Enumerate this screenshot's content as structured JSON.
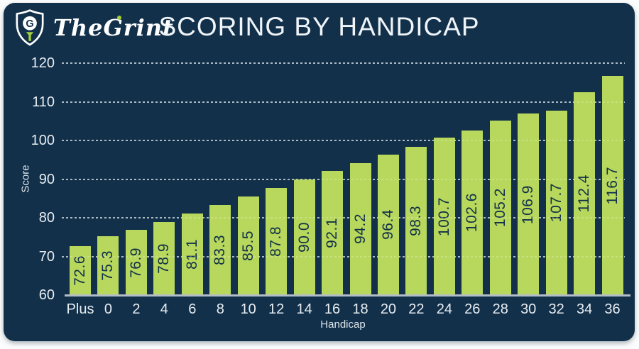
{
  "header": {
    "brand": "TheGrint",
    "title": "SCORING BY HANDICAP"
  },
  "chart_data": {
    "type": "bar",
    "title": "SCORING BY HANDICAP",
    "categories": [
      "Plus",
      "0",
      "2",
      "4",
      "6",
      "8",
      "10",
      "12",
      "14",
      "16",
      "18",
      "20",
      "22",
      "24",
      "26",
      "28",
      "30",
      "32",
      "34",
      "36"
    ],
    "values": [
      72.6,
      75.3,
      76.9,
      78.9,
      81.1,
      83.3,
      85.5,
      87.8,
      90.0,
      92.1,
      94.2,
      96.4,
      98.3,
      100.7,
      102.6,
      105.2,
      106.9,
      107.7,
      112.4,
      116.7
    ],
    "xlabel": "Handicap",
    "ylabel": "Score",
    "ylim": [
      60,
      120
    ],
    "yticks": [
      60,
      70,
      80,
      90,
      100,
      110,
      120
    ],
    "grid": "horizontal-dashed",
    "legend_position": "none",
    "colors": {
      "background": "#12304a",
      "bar": "#b7d85c",
      "bar_value_text": "#12304a",
      "axis_text": "#e7edf2",
      "gridline": "rgba(230,239,245,0.62)",
      "axis_line": "#b3bdc6",
      "title_text": "#eef4f8",
      "logo_accent": "#a4cf3f"
    }
  }
}
